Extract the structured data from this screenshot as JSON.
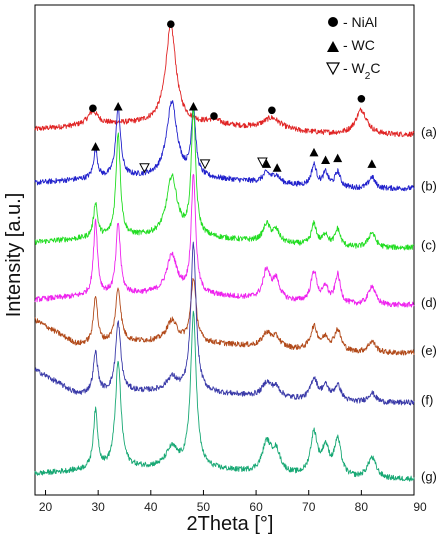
{
  "chart_data": {
    "type": "line",
    "title": "",
    "xlabel": "2Theta [°]",
    "ylabel": "Intensity [a.u.]",
    "xlim": [
      18,
      90
    ],
    "xticks": [
      20,
      30,
      40,
      50,
      60,
      70,
      80,
      90
    ],
    "yticks": "none",
    "grid": false,
    "legend": {
      "placement": "top-right",
      "entries": [
        {
          "marker": "filled-circle",
          "label": "- NiAl"
        },
        {
          "marker": "filled-triangle",
          "label": "- WC"
        },
        {
          "marker": "open-triangle-down",
          "label": "- W₂C"
        }
      ]
    },
    "series": [
      {
        "name": "(a)",
        "color": "#e02424",
        "baseline": 9.55,
        "peaks": [
          [
            29.0,
            0.35,
            1.2
          ],
          [
            43.8,
            2.55,
            1.2
          ],
          [
            52.0,
            0.12,
            1.5
          ],
          [
            63.0,
            0.3,
            2.0
          ],
          [
            80.0,
            0.65,
            1.3
          ]
        ]
      },
      {
        "name": "(b)",
        "color": "#2222cc",
        "baseline": 8.15,
        "peaks": [
          [
            29.5,
            0.75,
            0.45
          ],
          [
            33.8,
            1.8,
            0.55
          ],
          [
            44.0,
            1.95,
            1.2
          ],
          [
            48.1,
            1.75,
            0.5
          ],
          [
            62.0,
            0.25,
            0.8
          ],
          [
            63.8,
            0.2,
            0.8
          ],
          [
            71.0,
            0.55,
            0.6
          ],
          [
            73.2,
            0.35,
            0.6
          ],
          [
            75.5,
            0.4,
            0.6
          ],
          [
            82.0,
            0.3,
            0.7
          ]
        ]
      },
      {
        "name": "(c)",
        "color": "#22dd22",
        "baseline": 6.6,
        "peaks": [
          [
            29.5,
            0.9,
            0.45
          ],
          [
            33.8,
            2.7,
            0.5
          ],
          [
            44.0,
            1.55,
            1.2
          ],
          [
            48.1,
            3.25,
            0.5
          ],
          [
            62.0,
            0.45,
            0.8
          ],
          [
            63.8,
            0.3,
            0.8
          ],
          [
            71.0,
            0.55,
            0.6
          ],
          [
            73.2,
            0.3,
            0.6
          ],
          [
            75.5,
            0.45,
            0.6
          ],
          [
            82.0,
            0.4,
            0.8
          ]
        ]
      },
      {
        "name": "(d)",
        "color": "#ee22ee",
        "baseline": 5.1,
        "peaks": [
          [
            29.5,
            1.95,
            0.45
          ],
          [
            33.8,
            1.85,
            0.5
          ],
          [
            44.0,
            1.0,
            1.2
          ],
          [
            48.1,
            3.1,
            0.5
          ],
          [
            62.0,
            0.75,
            0.8
          ],
          [
            63.8,
            0.5,
            0.8
          ],
          [
            71.0,
            0.8,
            0.7
          ],
          [
            73.2,
            0.4,
            0.6
          ],
          [
            75.5,
            0.75,
            0.6
          ],
          [
            82.0,
            0.5,
            0.8
          ]
        ]
      },
      {
        "name": "(e)",
        "color": "#b24a1a",
        "baseline": 3.85,
        "peaks": [
          [
            29.5,
            1.25,
            0.45
          ],
          [
            33.8,
            1.4,
            0.6
          ],
          [
            44.0,
            0.55,
            1.2
          ],
          [
            48.1,
            1.65,
            0.6
          ],
          [
            62.0,
            0.35,
            1.0
          ],
          [
            63.8,
            0.25,
            1.0
          ],
          [
            71.0,
            0.6,
            0.8
          ],
          [
            73.2,
            0.3,
            0.8
          ],
          [
            75.5,
            0.55,
            0.8
          ],
          [
            82.0,
            0.3,
            0.9
          ]
        ]
      },
      {
        "name": "(f)",
        "color": "#3a3aa8",
        "baseline": 2.55,
        "peaks": [
          [
            29.5,
            1.05,
            0.5
          ],
          [
            33.8,
            1.8,
            0.6
          ],
          [
            44.0,
            0.35,
            1.2
          ],
          [
            48.1,
            3.85,
            0.6
          ],
          [
            62.0,
            0.35,
            1.0
          ],
          [
            63.8,
            0.25,
            1.0
          ],
          [
            71.0,
            0.55,
            0.8
          ],
          [
            73.2,
            0.35,
            0.8
          ],
          [
            75.5,
            0.4,
            0.8
          ],
          [
            82.0,
            0.25,
            0.9
          ]
        ]
      },
      {
        "name": "(g)",
        "color": "#18a874",
        "baseline": 0.55,
        "peaks": [
          [
            29.5,
            1.5,
            0.5
          ],
          [
            33.8,
            2.75,
            0.65
          ],
          [
            44.0,
            0.5,
            1.3
          ],
          [
            48.1,
            4.0,
            0.65
          ],
          [
            62.0,
            0.75,
            1.0
          ],
          [
            63.8,
            0.55,
            1.0
          ],
          [
            71.0,
            1.1,
            0.8
          ],
          [
            73.2,
            0.7,
            0.8
          ],
          [
            75.5,
            0.95,
            0.8
          ],
          [
            82.0,
            0.55,
            1.0
          ]
        ]
      }
    ],
    "markers": [
      {
        "type": "filled-circle",
        "x": 29.0,
        "y": 10.1
      },
      {
        "type": "filled-circle",
        "x": 43.8,
        "y": 12.3
      },
      {
        "type": "filled-circle",
        "x": 52.0,
        "y": 9.9
      },
      {
        "type": "filled-circle",
        "x": 63.0,
        "y": 10.05
      },
      {
        "type": "filled-circle",
        "x": 80.0,
        "y": 10.35
      },
      {
        "type": "filled-triangle",
        "x": 29.5,
        "y": 9.1
      },
      {
        "type": "filled-triangle",
        "x": 33.8,
        "y": 10.15
      },
      {
        "type": "filled-triangle",
        "x": 48.1,
        "y": 10.15
      },
      {
        "type": "filled-triangle",
        "x": 62.0,
        "y": 8.65
      },
      {
        "type": "filled-triangle",
        "x": 64.0,
        "y": 8.55
      },
      {
        "type": "filled-triangle",
        "x": 71.0,
        "y": 8.95
      },
      {
        "type": "filled-triangle",
        "x": 73.2,
        "y": 8.75
      },
      {
        "type": "filled-triangle",
        "x": 75.5,
        "y": 8.8
      },
      {
        "type": "filled-triangle",
        "x": 82.0,
        "y": 8.65
      },
      {
        "type": "open-triangle-down",
        "x": 38.8,
        "y": 8.55
      },
      {
        "type": "open-triangle-down",
        "x": 50.3,
        "y": 8.65
      },
      {
        "type": "open-triangle-down",
        "x": 61.2,
        "y": 8.7
      }
    ]
  },
  "ui": {
    "legend_label_1": "- NiAl",
    "legend_label_2": "- WC",
    "legend_label_3_main": "- W",
    "legend_label_3_sub": "2",
    "legend_label_3_end": "C",
    "xlabel": "2Theta [°]",
    "ylabel": "Intensity [a.u.]"
  }
}
